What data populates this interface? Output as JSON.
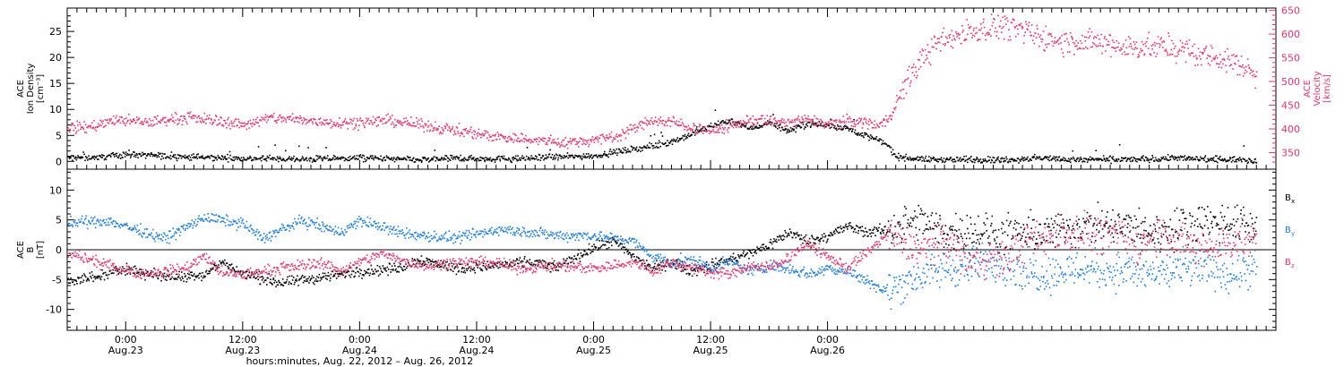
{
  "colors": {
    "black": "#000000",
    "pink": "#e8356b",
    "blue": "#1f7fe0",
    "axis": "#000000"
  },
  "chart_data": [
    {
      "type": "scatter",
      "panel": "top",
      "ylabel_left": [
        "ACE",
        "Ion Density",
        "[cm⁻³]"
      ],
      "ylabel_right": [
        "ACE",
        "Velocity",
        "[km/s]"
      ],
      "ylim_left": [
        -1.5,
        29.5
      ],
      "ylim_right": [
        315,
        655
      ],
      "yticks_left": [
        0,
        5,
        10,
        15,
        20,
        25
      ],
      "yticks_right": [
        350,
        400,
        450,
        500,
        550,
        600,
        650
      ],
      "series": [
        {
          "key": "density",
          "axis": "left",
          "color": "black",
          "profile": [
            [
              0,
              0.8
            ],
            [
              3,
              0.9
            ],
            [
              6,
              1.5
            ],
            [
              12,
              1.0
            ],
            [
              18,
              0.7
            ],
            [
              24,
              0.5
            ],
            [
              30,
              0.8
            ],
            [
              36,
              0.4
            ],
            [
              40,
              0.7
            ],
            [
              46,
              0.6
            ],
            [
              48,
              0.8
            ],
            [
              54,
              1.2
            ],
            [
              58,
              2.5
            ],
            [
              60,
              3.0
            ],
            [
              63,
              4.5
            ],
            [
              66,
              7.0
            ],
            [
              68,
              8.0
            ],
            [
              70,
              6.5
            ],
            [
              72,
              7.5
            ],
            [
              74,
              6.0
            ],
            [
              76,
              7.5
            ],
            [
              78,
              7.0
            ],
            [
              80,
              6.5
            ],
            [
              82,
              5.0
            ],
            [
              84,
              3.5
            ],
            [
              85,
              1.0
            ],
            [
              88,
              0.5
            ],
            [
              96,
              0.4
            ],
            [
              100,
              0.8
            ],
            [
              104,
              0.4
            ],
            [
              110,
              0.5
            ],
            [
              114,
              0.8
            ],
            [
              116,
              0.5
            ],
            [
              120,
              0.5
            ],
            [
              122,
              0.3
            ]
          ]
        },
        {
          "key": "velocity",
          "axis": "right",
          "color": "pink",
          "profile": [
            [
              0,
              405
            ],
            [
              2,
              405
            ],
            [
              5,
              420
            ],
            [
              8,
              415
            ],
            [
              12,
              425
            ],
            [
              15,
              420
            ],
            [
              18,
              410
            ],
            [
              21,
              425
            ],
            [
              24,
              420
            ],
            [
              27,
              415
            ],
            [
              30,
              415
            ],
            [
              33,
              420
            ],
            [
              36,
              410
            ],
            [
              40,
              398
            ],
            [
              44,
              385
            ],
            [
              48,
              378
            ],
            [
              51,
              372
            ],
            [
              54,
              378
            ],
            [
              56,
              385
            ],
            [
              58,
              402
            ],
            [
              60,
              420
            ],
            [
              62,
              415
            ],
            [
              64,
              405
            ],
            [
              66,
              395
            ],
            [
              68,
              408
            ],
            [
              70,
              420
            ],
            [
              72,
              418
            ],
            [
              74,
              415
            ],
            [
              76,
              420
            ],
            [
              78,
              412
            ],
            [
              80,
              418
            ],
            [
              82,
              415
            ],
            [
              83,
              410
            ],
            [
              84,
              420
            ],
            [
              85,
              450
            ],
            [
              86,
              500
            ],
            [
              88,
              560
            ],
            [
              90,
              590
            ],
            [
              93,
              610
            ],
            [
              96,
              620
            ],
            [
              99,
              600
            ],
            [
              102,
              585
            ],
            [
              105,
              585
            ],
            [
              108,
              575
            ],
            [
              111,
              575
            ],
            [
              114,
              570
            ],
            [
              117,
              555
            ],
            [
              119,
              545
            ],
            [
              121,
              530
            ],
            [
              122,
              510
            ]
          ]
        }
      ]
    },
    {
      "type": "scatter",
      "panel": "bottom",
      "ylabel_left": [
        "ACE",
        "B",
        "[nT]"
      ],
      "ylim": [
        -13.5,
        13.5
      ],
      "yticks": [
        -10,
        -5,
        0,
        5,
        10
      ],
      "series": [
        {
          "key": "bx",
          "name": "Bₓ",
          "color": "black",
          "profile": [
            [
              0,
              -5.0
            ],
            [
              3,
              -4.5
            ],
            [
              6,
              -3.0
            ],
            [
              10,
              -4.5
            ],
            [
              14,
              -4.0
            ],
            [
              16,
              -2.0
            ],
            [
              18,
              -4.0
            ],
            [
              22,
              -5.5
            ],
            [
              26,
              -4.5
            ],
            [
              30,
              -3.5
            ],
            [
              34,
              -3.0
            ],
            [
              36,
              -1.5
            ],
            [
              40,
              -3.0
            ],
            [
              44,
              -2.5
            ],
            [
              48,
              -2.0
            ],
            [
              50,
              -3.0
            ],
            [
              54,
              0.5
            ],
            [
              56,
              1.5
            ],
            [
              58,
              -1.0
            ],
            [
              60,
              -3.0
            ],
            [
              62,
              -2.0
            ],
            [
              64,
              -3.5
            ],
            [
              66,
              -2.5
            ],
            [
              68,
              -1.5
            ],
            [
              70,
              -0.5
            ],
            [
              72,
              1.0
            ],
            [
              74,
              3.0
            ],
            [
              76,
              1.5
            ],
            [
              78,
              2.5
            ],
            [
              80,
              4.0
            ],
            [
              82,
              3.0
            ],
            [
              84,
              3.5
            ],
            [
              86,
              4.5
            ],
            [
              88,
              4.5
            ],
            [
              90,
              3.0
            ],
            [
              92,
              3.5
            ],
            [
              96,
              2.5
            ],
            [
              100,
              3.0
            ],
            [
              104,
              4.0
            ],
            [
              108,
              4.0
            ],
            [
              112,
              3.0
            ],
            [
              116,
              5.0
            ],
            [
              120,
              4.5
            ],
            [
              122,
              4.0
            ]
          ]
        },
        {
          "key": "by",
          "name": "Bᵧ",
          "color": "blue",
          "profile": [
            [
              0,
              4.5
            ],
            [
              4,
              5.0
            ],
            [
              8,
              3.0
            ],
            [
              10,
              2.0
            ],
            [
              14,
              5.5
            ],
            [
              18,
              4.5
            ],
            [
              20,
              2.0
            ],
            [
              24,
              5.0
            ],
            [
              28,
              3.0
            ],
            [
              30,
              5.0
            ],
            [
              34,
              3.0
            ],
            [
              36,
              2.5
            ],
            [
              40,
              2.0
            ],
            [
              44,
              3.5
            ],
            [
              48,
              3.0
            ],
            [
              50,
              2.5
            ],
            [
              54,
              2.5
            ],
            [
              58,
              1.5
            ],
            [
              60,
              -1.0
            ],
            [
              62,
              -2.0
            ],
            [
              64,
              -1.5
            ],
            [
              66,
              -3.0
            ],
            [
              68,
              -2.0
            ],
            [
              70,
              -3.5
            ],
            [
              72,
              -2.5
            ],
            [
              74,
              -3.0
            ],
            [
              76,
              -4.0
            ],
            [
              78,
              -3.0
            ],
            [
              80,
              -3.5
            ],
            [
              82,
              -5.0
            ],
            [
              84,
              -7.0
            ],
            [
              86,
              -5.0
            ],
            [
              88,
              -4.0
            ],
            [
              90,
              -3.0
            ],
            [
              92,
              -3.0
            ],
            [
              94,
              -2.0
            ],
            [
              96,
              -2.0
            ],
            [
              98,
              -3.5
            ],
            [
              100,
              -4.0
            ],
            [
              104,
              -3.0
            ],
            [
              108,
              -3.5
            ],
            [
              112,
              -4.0
            ],
            [
              116,
              -3.0
            ],
            [
              120,
              -4.0
            ],
            [
              122,
              -3.5
            ]
          ]
        },
        {
          "key": "bz",
          "name": "Bᶻ",
          "color": "pink",
          "profile": [
            [
              0,
              -0.5
            ],
            [
              4,
              -2.5
            ],
            [
              8,
              -4.0
            ],
            [
              12,
              -3.0
            ],
            [
              14,
              -1.0
            ],
            [
              16,
              -4.0
            ],
            [
              18,
              -4.0
            ],
            [
              22,
              -3.0
            ],
            [
              26,
              -2.0
            ],
            [
              28,
              -3.5
            ],
            [
              30,
              -2.0
            ],
            [
              32,
              -0.5
            ],
            [
              36,
              -2.5
            ],
            [
              40,
              -2.0
            ],
            [
              44,
              -2.0
            ],
            [
              46,
              -3.0
            ],
            [
              50,
              -2.5
            ],
            [
              54,
              -3.0
            ],
            [
              56,
              -2.5
            ],
            [
              58,
              -2.0
            ],
            [
              60,
              -3.5
            ],
            [
              62,
              -2.0
            ],
            [
              64,
              -3.0
            ],
            [
              66,
              -3.5
            ],
            [
              68,
              -4.0
            ],
            [
              70,
              -2.5
            ],
            [
              72,
              -3.0
            ],
            [
              74,
              -1.0
            ],
            [
              76,
              1.0
            ],
            [
              78,
              -1.0
            ],
            [
              80,
              -3.0
            ],
            [
              84,
              2.5
            ],
            [
              86,
              1.0
            ],
            [
              88,
              0.0
            ],
            [
              90,
              2.0
            ],
            [
              92,
              -1.0
            ],
            [
              96,
              -1.5
            ],
            [
              98,
              1.0
            ],
            [
              100,
              2.0
            ],
            [
              104,
              3.5
            ],
            [
              108,
              2.0
            ],
            [
              110,
              1.0
            ],
            [
              112,
              3.0
            ],
            [
              116,
              0.0
            ],
            [
              120,
              2.0
            ],
            [
              122,
              1.0
            ]
          ]
        }
      ]
    }
  ],
  "x_axis": {
    "hours_total": 124,
    "data_end_hours": 122,
    "ticks": [
      {
        "h": 6,
        "time": "0:00",
        "date": "Aug.23"
      },
      {
        "h": 18,
        "time": "12:00",
        "date": "Aug.23"
      },
      {
        "h": 30,
        "time": "0:00",
        "date": "Aug.24"
      },
      {
        "h": 42,
        "time": "12:00",
        "date": "Aug.24"
      },
      {
        "h": 54,
        "time": "0:00",
        "date": "Aug.25"
      },
      {
        "h": 66,
        "time": "12:00",
        "date": "Aug.25"
      },
      {
        "h": 78,
        "time": "0:00",
        "date": "Aug.26"
      }
    ],
    "label": "hours:minutes, Aug. 22, 2012 – Aug. 26, 2012"
  },
  "legend": [
    {
      "text": "B",
      "sub": "x",
      "color": "black"
    },
    {
      "text": "B",
      "sub": "y",
      "color": "blue"
    },
    {
      "text": "B",
      "sub": "z",
      "color": "pink"
    }
  ]
}
